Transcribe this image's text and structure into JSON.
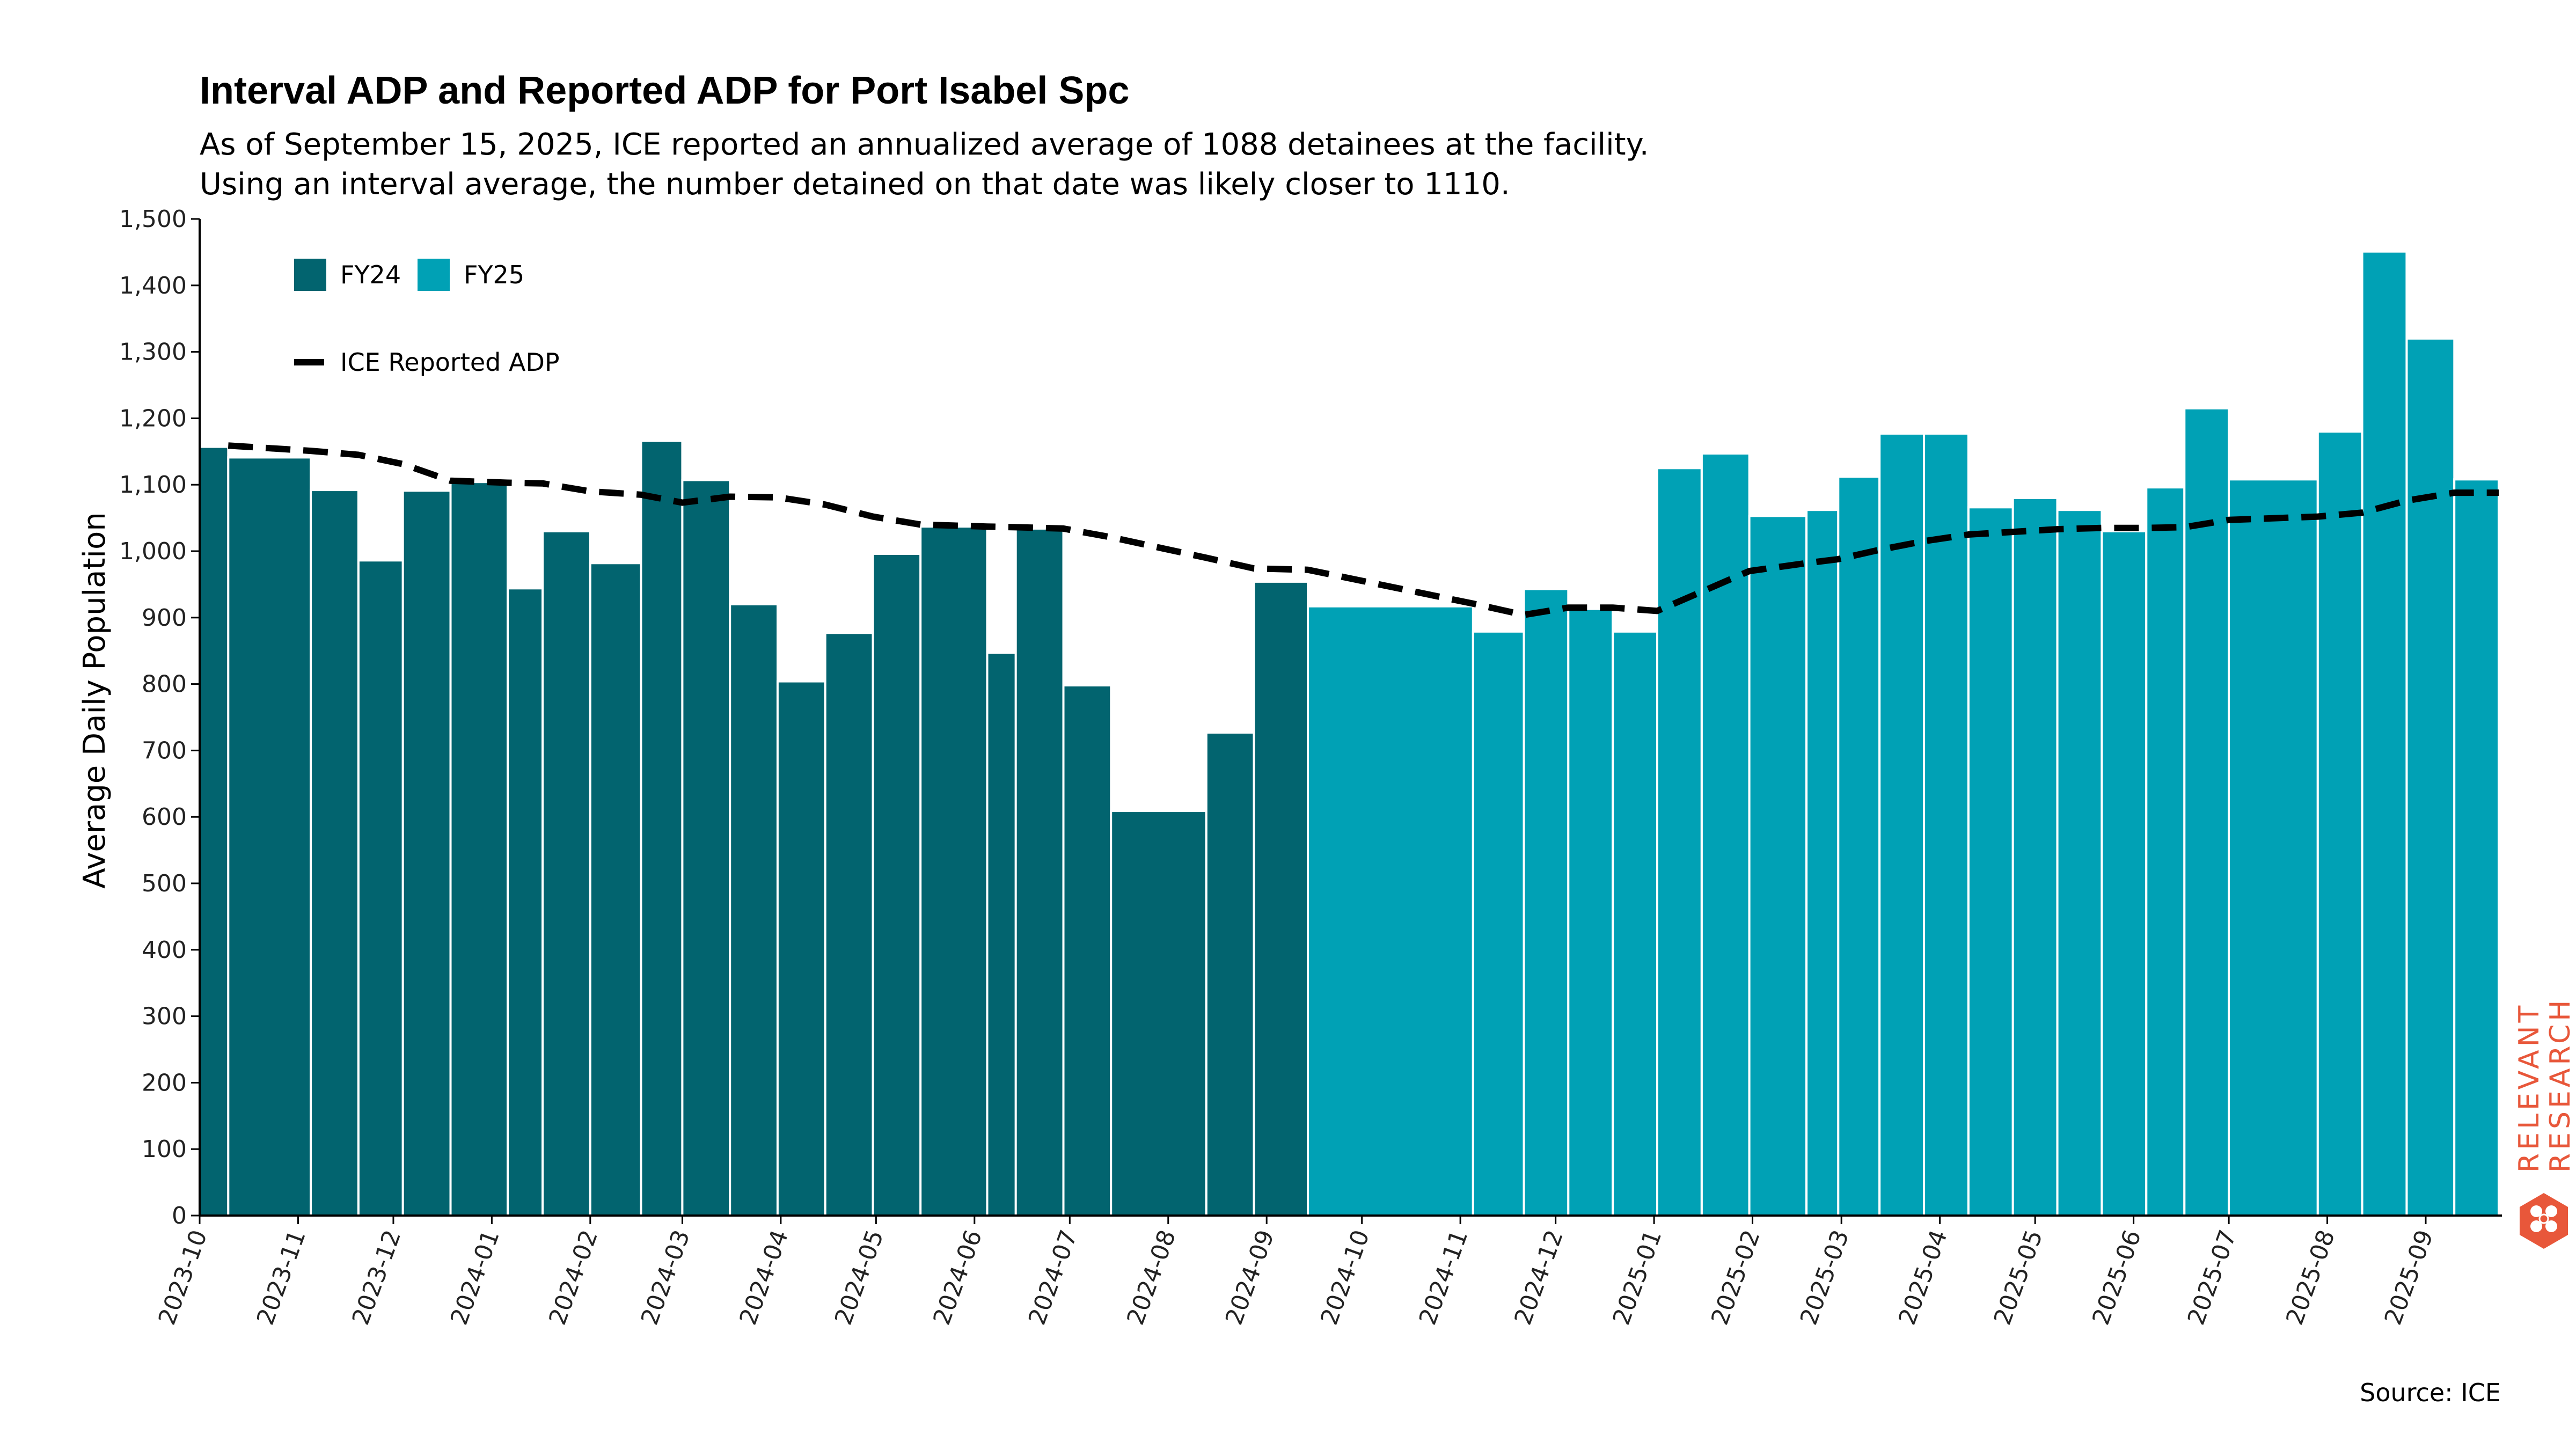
{
  "title": "Interval ADP and Reported ADP for Port Isabel Spc",
  "subtitle_lines": [
    "As of September 15, 2025, ICE reported an annualized average of 1088 detainees at the facility.",
    "Using an interval average, the number detained on that date was likely closer to 1110."
  ],
  "source": "Source: ICE",
  "logo": {
    "line1": "RELEVANT",
    "line2": "RESEARCH",
    "color": "#e8573a"
  },
  "colors": {
    "fy24": "#02646f",
    "fy25": "#00a1b5",
    "line": "#000000"
  },
  "chart_data": {
    "type": "bar",
    "ylabel": "Average Daily Population",
    "xlabel": "",
    "ylim": [
      0,
      1500
    ],
    "yticks": [
      0,
      100,
      200,
      300,
      400,
      500,
      600,
      700,
      800,
      900,
      1000,
      1100,
      1200,
      1300,
      1400,
      1500
    ],
    "ytick_labels": [
      "0",
      "100",
      "200",
      "300",
      "400",
      "500",
      "600",
      "700",
      "800",
      "900",
      "1,000",
      "1,100",
      "1,200",
      "1,300",
      "1,400",
      "1,500"
    ],
    "xlim": [
      "2023-10-01",
      "2025-09-25"
    ],
    "xticks": [
      "2023-10",
      "2023-11",
      "2023-12",
      "2024-01",
      "2024-02",
      "2024-03",
      "2024-04",
      "2024-05",
      "2024-06",
      "2024-07",
      "2024-08",
      "2024-09",
      "2024-10",
      "2024-11",
      "2024-12",
      "2025-01",
      "2025-02",
      "2025-03",
      "2025-04",
      "2025-05",
      "2025-06",
      "2025-07",
      "2025-08",
      "2025-09"
    ],
    "legend": {
      "placement": "top-left",
      "bar_entries": [
        "FY24",
        "FY25"
      ],
      "line_entry": "ICE Reported ADP"
    },
    "bars": [
      {
        "start": "2023-10-01",
        "end": "2023-10-10",
        "value": 1157,
        "fy": "FY24"
      },
      {
        "start": "2023-10-10",
        "end": "2023-11-05",
        "value": 1141,
        "fy": "FY24"
      },
      {
        "start": "2023-11-05",
        "end": "2023-11-20",
        "value": 1092,
        "fy": "FY24"
      },
      {
        "start": "2023-11-20",
        "end": "2023-12-04",
        "value": 986,
        "fy": "FY24"
      },
      {
        "start": "2023-12-04",
        "end": "2023-12-19",
        "value": 1091,
        "fy": "FY24"
      },
      {
        "start": "2023-12-19",
        "end": "2024-01-06",
        "value": 1104,
        "fy": "FY24"
      },
      {
        "start": "2024-01-06",
        "end": "2024-01-17",
        "value": 944,
        "fy": "FY24"
      },
      {
        "start": "2024-01-17",
        "end": "2024-02-01",
        "value": 1030,
        "fy": "FY24"
      },
      {
        "start": "2024-02-01",
        "end": "2024-02-17",
        "value": 982,
        "fy": "FY24"
      },
      {
        "start": "2024-02-17",
        "end": "2024-03-01",
        "value": 1166,
        "fy": "FY24"
      },
      {
        "start": "2024-03-01",
        "end": "2024-03-16",
        "value": 1107,
        "fy": "FY24"
      },
      {
        "start": "2024-03-16",
        "end": "2024-03-31",
        "value": 920,
        "fy": "FY24"
      },
      {
        "start": "2024-03-31",
        "end": "2024-04-15",
        "value": 804,
        "fy": "FY24"
      },
      {
        "start": "2024-04-15",
        "end": "2024-04-30",
        "value": 877,
        "fy": "FY24"
      },
      {
        "start": "2024-04-30",
        "end": "2024-05-15",
        "value": 996,
        "fy": "FY24"
      },
      {
        "start": "2024-05-15",
        "end": "2024-06-05",
        "value": 1037,
        "fy": "FY24"
      },
      {
        "start": "2024-06-05",
        "end": "2024-06-14",
        "value": 847,
        "fy": "FY24"
      },
      {
        "start": "2024-06-14",
        "end": "2024-06-29",
        "value": 1034,
        "fy": "FY24"
      },
      {
        "start": "2024-06-29",
        "end": "2024-07-14",
        "value": 798,
        "fy": "FY24"
      },
      {
        "start": "2024-07-14",
        "end": "2024-08-13",
        "value": 609,
        "fy": "FY24"
      },
      {
        "start": "2024-08-13",
        "end": "2024-08-28",
        "value": 727,
        "fy": "FY24"
      },
      {
        "start": "2024-08-28",
        "end": "2024-09-14",
        "value": 954,
        "fy": "FY24"
      },
      {
        "start": "2024-09-14",
        "end": "2024-11-05",
        "value": 917,
        "fy": "FY25"
      },
      {
        "start": "2024-11-05",
        "end": "2024-11-21",
        "value": 879,
        "fy": "FY25"
      },
      {
        "start": "2024-11-21",
        "end": "2024-12-05",
        "value": 943,
        "fy": "FY25"
      },
      {
        "start": "2024-12-05",
        "end": "2024-12-19",
        "value": 913,
        "fy": "FY25"
      },
      {
        "start": "2024-12-19",
        "end": "2025-01-02",
        "value": 879,
        "fy": "FY25"
      },
      {
        "start": "2025-01-02",
        "end": "2025-01-16",
        "value": 1125,
        "fy": "FY25"
      },
      {
        "start": "2025-01-16",
        "end": "2025-01-31",
        "value": 1147,
        "fy": "FY25"
      },
      {
        "start": "2025-01-31",
        "end": "2025-02-18",
        "value": 1053,
        "fy": "FY25"
      },
      {
        "start": "2025-02-18",
        "end": "2025-02-28",
        "value": 1062,
        "fy": "FY25"
      },
      {
        "start": "2025-02-28",
        "end": "2025-03-13",
        "value": 1112,
        "fy": "FY25"
      },
      {
        "start": "2025-03-13",
        "end": "2025-03-27",
        "value": 1177,
        "fy": "FY25"
      },
      {
        "start": "2025-03-27",
        "end": "2025-04-10",
        "value": 1177,
        "fy": "FY25"
      },
      {
        "start": "2025-04-10",
        "end": "2025-04-24",
        "value": 1066,
        "fy": "FY25"
      },
      {
        "start": "2025-04-24",
        "end": "2025-05-08",
        "value": 1080,
        "fy": "FY25"
      },
      {
        "start": "2025-05-08",
        "end": "2025-05-22",
        "value": 1062,
        "fy": "FY25"
      },
      {
        "start": "2025-05-22",
        "end": "2025-06-05",
        "value": 1030,
        "fy": "FY25"
      },
      {
        "start": "2025-06-05",
        "end": "2025-06-17",
        "value": 1096,
        "fy": "FY25"
      },
      {
        "start": "2025-06-17",
        "end": "2025-07-01",
        "value": 1215,
        "fy": "FY25"
      },
      {
        "start": "2025-07-01",
        "end": "2025-07-29",
        "value": 1108,
        "fy": "FY25"
      },
      {
        "start": "2025-07-29",
        "end": "2025-08-12",
        "value": 1180,
        "fy": "FY25"
      },
      {
        "start": "2025-08-12",
        "end": "2025-08-26",
        "value": 1451,
        "fy": "FY25"
      },
      {
        "start": "2025-08-26",
        "end": "2025-09-10",
        "value": 1320,
        "fy": "FY25"
      },
      {
        "start": "2025-09-10",
        "end": "2025-09-24",
        "value": 1108,
        "fy": "FY25"
      }
    ],
    "series": [
      {
        "name": "ICE Reported ADP",
        "type": "line",
        "style": "dashed",
        "x": [
          "2023-10-10",
          "2023-11-05",
          "2023-11-20",
          "2023-12-04",
          "2023-12-19",
          "2024-01-06",
          "2024-01-17",
          "2024-02-01",
          "2024-02-17",
          "2024-03-01",
          "2024-03-16",
          "2024-03-31",
          "2024-04-15",
          "2024-04-30",
          "2024-05-15",
          "2024-06-05",
          "2024-06-14",
          "2024-06-29",
          "2024-07-14",
          "2024-08-13",
          "2024-08-28",
          "2024-09-14",
          "2024-11-05",
          "2024-11-21",
          "2024-12-05",
          "2024-12-19",
          "2025-01-02",
          "2025-01-16",
          "2025-01-31",
          "2025-02-18",
          "2025-02-28",
          "2025-03-13",
          "2025-03-27",
          "2025-04-10",
          "2025-04-24",
          "2025-05-08",
          "2025-05-22",
          "2025-06-05",
          "2025-06-17",
          "2025-07-01",
          "2025-07-29",
          "2025-08-12",
          "2025-08-26",
          "2025-09-10",
          "2025-09-24"
        ],
        "values": [
          1159,
          1151,
          1145,
          1131,
          1106,
          1103,
          1102,
          1090,
          1085,
          1073,
          1082,
          1081,
          1070,
          1052,
          1040,
          1037,
          1036,
          1034,
          1021,
          990,
          974,
          972,
          921,
          904,
          915,
          915,
          910,
          939,
          970,
          982,
          988,
          1002,
          1015,
          1025,
          1029,
          1033,
          1035,
          1035,
          1036,
          1047,
          1052,
          1058,
          1076,
          1088,
          1088
        ]
      }
    ]
  }
}
